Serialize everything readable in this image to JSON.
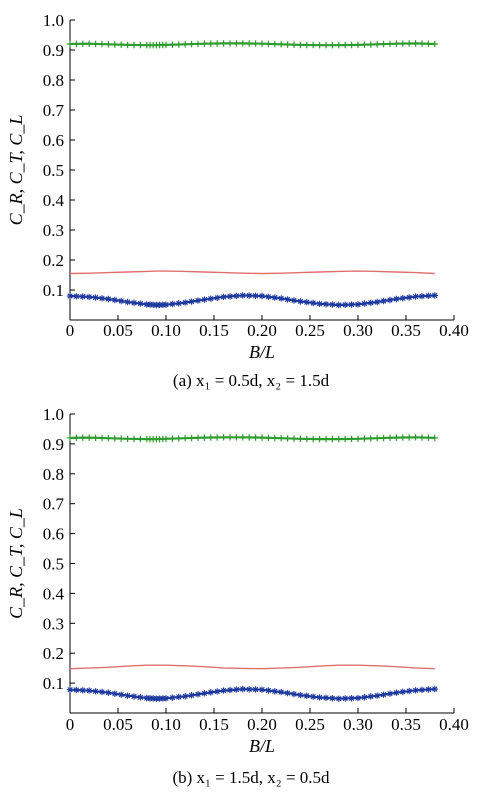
{
  "chart_data": [
    {
      "type": "line",
      "caption": "(a) x₁ = 0.5d, x₂ = 1.5d",
      "xlabel": "B/L",
      "ylabel": "C_R, C_T, C_L",
      "xlim": [
        0,
        0.4
      ],
      "ylim": [
        0,
        1.0
      ],
      "x_ticks": [
        "0",
        "0.05",
        "0.10",
        "0.15",
        "0.20",
        "0.25",
        "0.30",
        "0.35",
        "0.40"
      ],
      "y_ticks": [
        "0.1",
        "0.2",
        "0.3",
        "0.4",
        "0.5",
        "0.6",
        "0.7",
        "0.8",
        "0.9",
        "1.0"
      ],
      "x": [
        0.0,
        0.02,
        0.04,
        0.06,
        0.08,
        0.09,
        0.1,
        0.12,
        0.14,
        0.16,
        0.18,
        0.2,
        0.22,
        0.24,
        0.26,
        0.28,
        0.3,
        0.32,
        0.34,
        0.36,
        0.38
      ],
      "series": [
        {
          "color": "#2e9b2e",
          "marker": "plus",
          "values": [
            0.92,
            0.921,
            0.919,
            0.917,
            0.916,
            0.916,
            0.917,
            0.919,
            0.921,
            0.922,
            0.922,
            0.921,
            0.919,
            0.917,
            0.916,
            0.916,
            0.917,
            0.919,
            0.921,
            0.922,
            0.92
          ]
        },
        {
          "color": "#e07070",
          "marker": "none",
          "values": [
            0.155,
            0.156,
            0.158,
            0.16,
            0.162,
            0.163,
            0.163,
            0.162,
            0.16,
            0.158,
            0.156,
            0.155,
            0.156,
            0.158,
            0.16,
            0.162,
            0.163,
            0.162,
            0.16,
            0.158,
            0.155
          ]
        },
        {
          "color": "#1f3a9e",
          "marker": "star",
          "values": [
            0.08,
            0.077,
            0.07,
            0.06,
            0.052,
            0.05,
            0.051,
            0.058,
            0.068,
            0.077,
            0.082,
            0.08,
            0.072,
            0.062,
            0.054,
            0.05,
            0.052,
            0.06,
            0.07,
            0.078,
            0.082
          ]
        }
      ]
    },
    {
      "type": "line",
      "caption": "(b) x₁ = 1.5d, x₂ = 0.5d",
      "xlabel": "B/L",
      "ylabel": "C_R, C_T, C_L",
      "xlim": [
        0,
        0.4
      ],
      "ylim": [
        0,
        1.0
      ],
      "x_ticks": [
        "0",
        "0.05",
        "0.10",
        "0.15",
        "0.20",
        "0.25",
        "0.30",
        "0.35",
        "0.40"
      ],
      "y_ticks": [
        "0.1",
        "0.2",
        "0.3",
        "0.4",
        "0.5",
        "0.6",
        "0.7",
        "0.8",
        "0.9",
        "1.0"
      ],
      "x": [
        0.0,
        0.02,
        0.04,
        0.06,
        0.08,
        0.09,
        0.1,
        0.12,
        0.14,
        0.16,
        0.18,
        0.2,
        0.22,
        0.24,
        0.26,
        0.28,
        0.3,
        0.32,
        0.34,
        0.36,
        0.38
      ],
      "series": [
        {
          "color": "#2e9b2e",
          "marker": "plus",
          "values": [
            0.92,
            0.921,
            0.919,
            0.917,
            0.916,
            0.916,
            0.917,
            0.919,
            0.921,
            0.922,
            0.922,
            0.921,
            0.919,
            0.917,
            0.916,
            0.916,
            0.917,
            0.919,
            0.921,
            0.922,
            0.92
          ]
        },
        {
          "color": "#e07070",
          "marker": "none",
          "values": [
            0.148,
            0.15,
            0.153,
            0.157,
            0.16,
            0.16,
            0.16,
            0.158,
            0.155,
            0.151,
            0.149,
            0.148,
            0.15,
            0.153,
            0.157,
            0.16,
            0.16,
            0.158,
            0.155,
            0.151,
            0.148
          ]
        },
        {
          "color": "#1f3a9e",
          "marker": "star",
          "values": [
            0.078,
            0.075,
            0.068,
            0.058,
            0.05,
            0.048,
            0.049,
            0.056,
            0.066,
            0.075,
            0.08,
            0.078,
            0.07,
            0.06,
            0.052,
            0.048,
            0.05,
            0.058,
            0.068,
            0.076,
            0.08
          ]
        }
      ]
    }
  ]
}
